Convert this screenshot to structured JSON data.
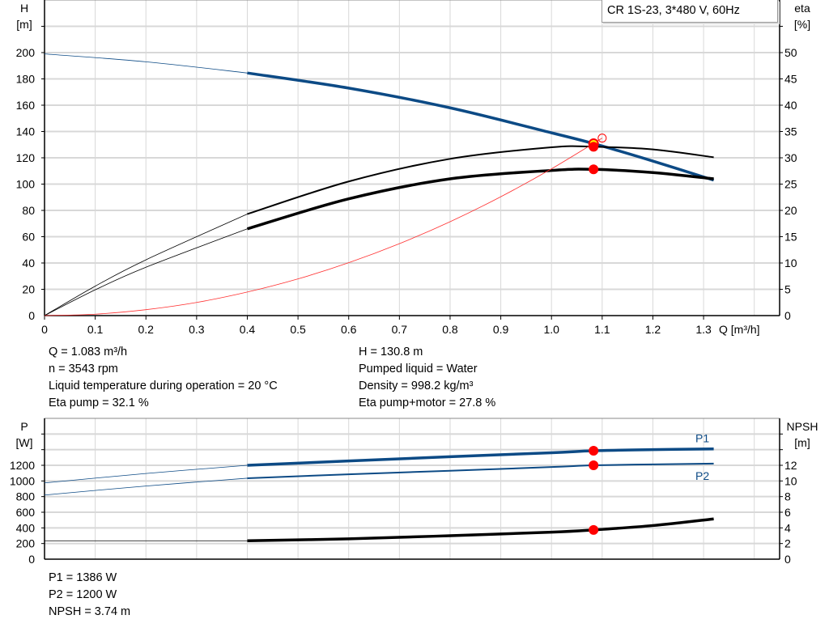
{
  "legend": {
    "title": "CR 1S-23, 3*480 V, 60Hz"
  },
  "colors": {
    "head": "#0c4a85",
    "eta": "#000000",
    "system": "#ff3030",
    "marker": "#ff0000",
    "marker_ring": "#ffee00",
    "power": "#0c4a85",
    "npsh": "#000000",
    "grid": "#d8d8d8"
  },
  "chart_data": [
    {
      "type": "line",
      "x_label": "Q [m³/h]",
      "y_left_label": {
        "name": "H",
        "unit": "[m]"
      },
      "y_right_label": {
        "name": "eta",
        "unit": "[%]"
      },
      "xlim": [
        0,
        1.45
      ],
      "ylim_left": [
        0,
        240
      ],
      "ylim_right": [
        0,
        60
      ],
      "x_ticks": [
        "0",
        "0.1",
        "0.2",
        "0.3",
        "0.4",
        "0.5",
        "0.6",
        "0.7",
        "0.8",
        "0.9",
        "1.0",
        "1.1",
        "1.2",
        "1.3"
      ],
      "y_left_ticks": [
        "0",
        "20",
        "40",
        "60",
        "80",
        "100",
        "120",
        "140",
        "160",
        "180",
        "200"
      ],
      "y_right_ticks": [
        "0",
        "5",
        "10",
        "15",
        "20",
        "25",
        "30",
        "35",
        "40",
        "45",
        "50"
      ],
      "grid": true,
      "series": [
        {
          "id": "head",
          "axis": "left",
          "thin_until": 0.4,
          "x": [
            0,
            0.2,
            0.4,
            0.6,
            0.8,
            1.0,
            1.083,
            1.2,
            1.32
          ],
          "y": [
            199,
            193,
            184.5,
            173,
            158,
            139,
            130.8,
            117.5,
            103
          ]
        },
        {
          "id": "eta-pump",
          "axis": "right",
          "thin_until": 0.4,
          "x": [
            0,
            0.1,
            0.2,
            0.4,
            0.6,
            0.8,
            1.0,
            1.083,
            1.2,
            1.32
          ],
          "y": [
            0,
            5.6,
            10.6,
            19.3,
            25.5,
            29.8,
            32.0,
            32.1,
            31.6,
            30.1
          ]
        },
        {
          "id": "eta-pump-motor",
          "axis": "right",
          "thin_until": 0.4,
          "x": [
            0,
            0.1,
            0.2,
            0.4,
            0.6,
            0.8,
            1.0,
            1.083,
            1.2,
            1.32
          ],
          "y": [
            0,
            4.9,
            9.2,
            16.5,
            22.2,
            26.0,
            27.6,
            27.8,
            27.2,
            26.0
          ]
        },
        {
          "id": "system",
          "axis": "left",
          "x": [
            0,
            0.1,
            0.2,
            0.3,
            0.4,
            0.5,
            0.6,
            0.7,
            0.8,
            0.9,
            1.0,
            1.1
          ],
          "y": [
            0,
            1.1,
            4.5,
            10,
            17.9,
            27.9,
            40.2,
            54.7,
            71.4,
            90.4,
            111.6,
            135
          ]
        }
      ],
      "markers": [
        {
          "id": "duty-point",
          "x": 1.083,
          "y": 130.8,
          "axis": "left",
          "style": "ring"
        },
        {
          "id": "eta-pump-point",
          "x": 1.083,
          "y": 32.1,
          "axis": "right",
          "style": "dot"
        },
        {
          "id": "eta-pump-motor-point",
          "x": 1.083,
          "y": 27.8,
          "axis": "right",
          "style": "dot"
        },
        {
          "id": "system-end",
          "x": 1.1,
          "y": 135,
          "axis": "left",
          "style": "open"
        }
      ]
    },
    {
      "type": "line",
      "y_left_label": {
        "name": "P",
        "unit": "[W]"
      },
      "y_right_label": {
        "name": "NPSH",
        "unit": "[m]"
      },
      "xlim": [
        0,
        1.45
      ],
      "ylim_left": [
        0,
        1800
      ],
      "ylim_right": [
        0,
        18
      ],
      "y_left_ticks": [
        "0",
        "200",
        "400",
        "600",
        "800",
        "1000",
        "1200"
      ],
      "y_right_ticks": [
        "0",
        "2",
        "4",
        "6",
        "8",
        "10",
        "12"
      ],
      "grid": true,
      "series": [
        {
          "id": "P1",
          "name": "P1",
          "axis": "left",
          "thin_until": 0.4,
          "x": [
            0,
            0.2,
            0.4,
            0.6,
            0.8,
            1.0,
            1.083,
            1.2,
            1.32
          ],
          "y": [
            975,
            1095,
            1200,
            1255,
            1310,
            1360,
            1386,
            1400,
            1410
          ]
        },
        {
          "id": "P2",
          "name": "P2",
          "axis": "left",
          "thin_until": 0.4,
          "x": [
            0,
            0.2,
            0.4,
            0.6,
            0.8,
            1.0,
            1.083,
            1.2,
            1.32
          ],
          "y": [
            820,
            935,
            1035,
            1085,
            1130,
            1178,
            1200,
            1212,
            1222
          ]
        },
        {
          "id": "npsh",
          "axis": "right",
          "thin_until": 0.4,
          "x": [
            0,
            0.4,
            0.6,
            0.8,
            1.0,
            1.083,
            1.2,
            1.32
          ],
          "y": [
            2.35,
            2.35,
            2.6,
            3.0,
            3.45,
            3.74,
            4.3,
            5.15
          ]
        }
      ],
      "markers": [
        {
          "id": "p1-point",
          "x": 1.083,
          "y": 1386,
          "axis": "left"
        },
        {
          "id": "p2-point",
          "x": 1.083,
          "y": 1200,
          "axis": "left"
        },
        {
          "id": "npsh-point",
          "x": 1.083,
          "y": 3.74,
          "axis": "right"
        }
      ]
    }
  ],
  "info_top": {
    "left": [
      "Q = 1.083 m³/h",
      "n = 3543 rpm",
      "Liquid temperature during operation = 20 °C",
      "Eta pump = 32.1 %"
    ],
    "right": [
      "H = 130.8 m",
      "Pumped liquid = Water",
      "Density = 998.2 kg/m³",
      "Eta pump+motor = 27.8 %"
    ]
  },
  "info_bottom": [
    "P1 = 1386 W",
    "P2 = 1200 W",
    "NPSH = 3.74 m"
  ]
}
